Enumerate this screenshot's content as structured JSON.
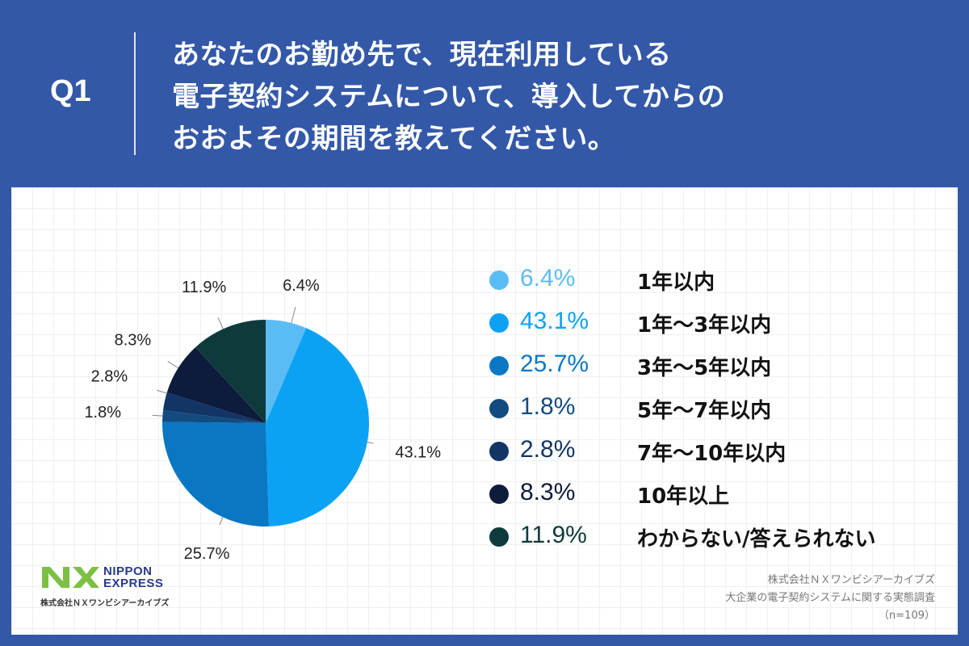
{
  "header": {
    "q_label": "Q1",
    "lines": [
      "あなたのお勤め先で、現在利用している",
      "電子契約システムについて、導入してからの",
      "おおよその期間を教えてください。"
    ]
  },
  "chart_data": {
    "type": "pie",
    "title": "あなたのお勤め先で、現在利用している電子契約システムについて、導入してからのおおよその期間を教えてください。",
    "unit": "%",
    "categories": [
      "1年以内",
      "1年～3年以内",
      "3年～5年以内",
      "5年～7年以内",
      "7年～10年以内",
      "10年以上",
      "わからない/答えられない"
    ],
    "values": [
      6.4,
      43.1,
      25.7,
      1.8,
      2.8,
      8.3,
      11.9
    ],
    "labels": [
      "6.4%",
      "43.1%",
      "25.7%",
      "1.8%",
      "2.8%",
      "8.3%",
      "11.9%"
    ],
    "colors": [
      "#5bbcf5",
      "#0ca2f4",
      "#0a77c4",
      "#134b80",
      "#123566",
      "#0d1b3c",
      "#0f3a3c"
    ],
    "legend_position": "right"
  },
  "logo": {
    "mark": "NX",
    "line1": "NIPPON",
    "line2": "EXPRESS",
    "company": "株式会社ＮＸワンビシアーカイブズ",
    "colors": {
      "mark": "#7cc043",
      "text": "#2a3a8c"
    }
  },
  "source": {
    "line1": "株式会社ＮＸワンビシアーカイブズ",
    "line2": "大企業の電子契約システムに関する実態調査",
    "line3": "（n=109）"
  },
  "colors": {
    "background": "#3358a8",
    "panel": "#ffffff"
  }
}
